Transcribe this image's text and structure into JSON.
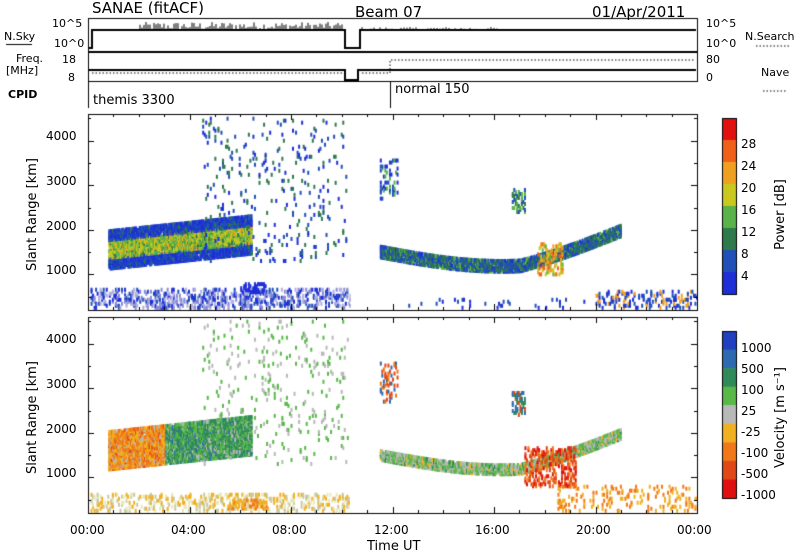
{
  "header": {
    "left_title": "SANAE (fitACF)",
    "center_title": "Beam 07",
    "date": "01/Apr/2011"
  },
  "top_panel": {
    "nsky_label": "N.Sky",
    "nsky_ticks": [
      "10^5",
      "10^0"
    ],
    "nsearch_label": "N.Search",
    "nsearch_ticks": [
      "10^5",
      "10^0"
    ],
    "freq_label_line1": "Freq.",
    "freq_label_line2": "[MHz]",
    "freq_ticks": [
      "18",
      "8"
    ],
    "nave_label": "Nave",
    "nave_ticks": [
      "80",
      "0"
    ],
    "cpid_label": "CPID",
    "cpid_modes": [
      "themis 3300",
      "normal 150"
    ]
  },
  "chart_data": [
    {
      "type": "heatmap",
      "name": "power",
      "ylabel": "Slant Range [km]",
      "xlabel": "Time UT",
      "xticks": [
        "00:00",
        "04:00",
        "08:00",
        "12:00",
        "16:00",
        "20:00",
        "00:00"
      ],
      "yticks": [
        "1000",
        "2000",
        "3000",
        "4000"
      ],
      "ylim": [
        200,
        4600
      ],
      "colorbar_label": "Power [dB]",
      "colorbar_ticks": [
        "4",
        "8",
        "12",
        "16",
        "20",
        "24",
        "28"
      ],
      "colors": [
        "#1e2fd8",
        "#2050b8",
        "#2f7a4a",
        "#59b24a",
        "#c8c81e",
        "#f0a020",
        "#f06018",
        "#e01010"
      ]
    },
    {
      "type": "heatmap",
      "name": "velocity",
      "ylabel": "Slant Range [km]",
      "xlabel": "Time UT",
      "xticks": [
        "00:00",
        "04:00",
        "08:00",
        "12:00",
        "16:00",
        "20:00",
        "00:00"
      ],
      "yticks": [
        "1000",
        "2000",
        "3000",
        "4000"
      ],
      "ylim": [
        200,
        4600
      ],
      "colorbar_label": "Velocity [m s⁻¹]",
      "colorbar_ticks": [
        "1000",
        "500",
        "100",
        "25",
        "-25",
        "-100",
        "-500",
        "-1000"
      ],
      "colors": [
        "#2040c0",
        "#2e6ab0",
        "#2f8a5a",
        "#58b848",
        "#b8b8b8",
        "#f0b020",
        "#f07818",
        "#e04818",
        "#e01010"
      ]
    }
  ]
}
